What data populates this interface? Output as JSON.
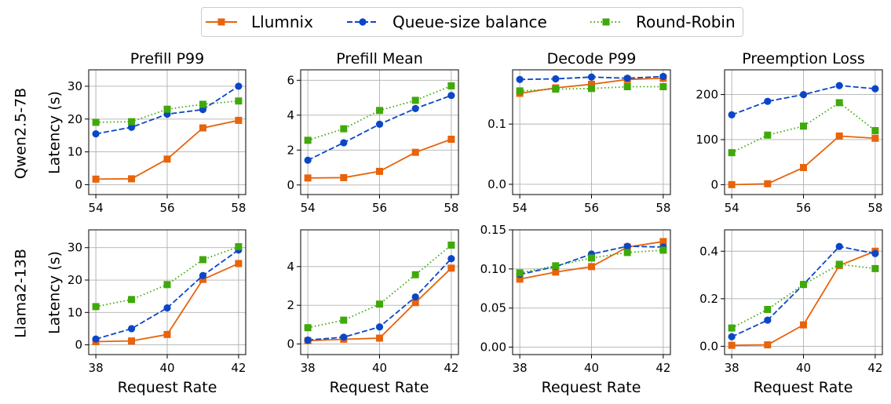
{
  "legend": {
    "entries": [
      {
        "label": "Llumnix",
        "color": "#e8630a",
        "marker": "square",
        "dash": "solid"
      },
      {
        "label": "Queue-size balance",
        "color": "#0b46c8",
        "marker": "circle",
        "dash": "dashed"
      },
      {
        "label": "Round-Robin",
        "color": "#3fa90a",
        "marker": "square",
        "dash": "dotted"
      }
    ]
  },
  "row_labels": [
    "Qwen2.5-7B",
    "Llama2-13B"
  ],
  "ylabel": "Latency (s)",
  "xlabel": "Request Rate",
  "chart_data": [
    {
      "type": "line",
      "title": "Prefill P99",
      "row": 0,
      "col": 0,
      "x": [
        54,
        55,
        56,
        57,
        58
      ],
      "xticks": [
        54,
        56,
        58
      ],
      "xlim": [
        53.8,
        58.2
      ],
      "ylim": [
        -3,
        35
      ],
      "yticks": [
        0,
        10,
        20,
        30
      ],
      "ytick_labels": [
        "0",
        "10",
        "20",
        "30"
      ],
      "series": [
        {
          "name": "Llumnix",
          "values": [
            1.7,
            1.8,
            7.8,
            17.3,
            19.6
          ]
        },
        {
          "name": "Queue-size balance",
          "values": [
            15.5,
            17.5,
            21.5,
            22.9,
            30.0
          ]
        },
        {
          "name": "Round-Robin",
          "values": [
            19.0,
            19.2,
            23.0,
            24.5,
            25.5
          ]
        }
      ]
    },
    {
      "type": "line",
      "title": "Prefill Mean",
      "row": 0,
      "col": 1,
      "x": [
        54,
        55,
        56,
        57,
        58
      ],
      "xticks": [
        54,
        56,
        58
      ],
      "xlim": [
        53.8,
        58.2
      ],
      "ylim": [
        -0.55,
        6.6
      ],
      "yticks": [
        0,
        2,
        4,
        6
      ],
      "ytick_labels": [
        "0",
        "2",
        "4",
        "6"
      ],
      "series": [
        {
          "name": "Llumnix",
          "values": [
            0.4,
            0.42,
            0.78,
            1.87,
            2.62
          ]
        },
        {
          "name": "Queue-size balance",
          "values": [
            1.42,
            2.42,
            3.48,
            4.38,
            5.13
          ]
        },
        {
          "name": "Round-Robin",
          "values": [
            2.56,
            3.22,
            4.27,
            4.85,
            5.68
          ]
        }
      ]
    },
    {
      "type": "line",
      "title": "Decode P99",
      "row": 0,
      "col": 2,
      "x": [
        54,
        55,
        56,
        57,
        58
      ],
      "xticks": [
        54,
        56,
        58
      ],
      "xlim": [
        53.8,
        58.2
      ],
      "ylim": [
        -0.017,
        0.19
      ],
      "yticks": [
        0.0,
        0.1
      ],
      "ytick_labels": [
        "0.0",
        "0.1"
      ],
      "series": [
        {
          "name": "Llumnix",
          "values": [
            0.151,
            0.16,
            0.166,
            0.174,
            0.176
          ]
        },
        {
          "name": "Queue-size balance",
          "values": [
            0.174,
            0.175,
            0.178,
            0.176,
            0.179
          ]
        },
        {
          "name": "Round-Robin",
          "values": [
            0.155,
            0.158,
            0.159,
            0.162,
            0.162
          ]
        }
      ]
    },
    {
      "type": "line",
      "title": "Preemption Loss",
      "row": 0,
      "col": 3,
      "x": [
        54,
        55,
        56,
        57,
        58
      ],
      "xticks": [
        54,
        56,
        58
      ],
      "xlim": [
        53.8,
        58.2
      ],
      "ylim": [
        -22,
        255
      ],
      "yticks": [
        0,
        100,
        200
      ],
      "ytick_labels": [
        "0",
        "100",
        "200"
      ],
      "series": [
        {
          "name": "Llumnix",
          "values": [
            0,
            2,
            38,
            108,
            103
          ]
        },
        {
          "name": "Queue-size balance",
          "values": [
            155,
            185,
            200,
            220,
            213
          ]
        },
        {
          "name": "Round-Robin",
          "values": [
            71,
            110,
            130,
            182,
            120
          ]
        }
      ]
    },
    {
      "type": "line",
      "title": "",
      "row": 1,
      "col": 0,
      "x": [
        38,
        39,
        40,
        41,
        42
      ],
      "xticks": [
        38,
        40,
        42
      ],
      "xlim": [
        37.8,
        42.2
      ],
      "ylim": [
        -3,
        35.5
      ],
      "yticks": [
        0,
        10,
        20,
        30
      ],
      "ytick_labels": [
        "0",
        "10",
        "20",
        "30"
      ],
      "series": [
        {
          "name": "Llumnix",
          "values": [
            1.0,
            1.2,
            3.2,
            20.2,
            25.1
          ]
        },
        {
          "name": "Queue-size balance",
          "values": [
            1.8,
            5.0,
            11.4,
            21.4,
            29.3
          ]
        },
        {
          "name": "Round-Robin",
          "values": [
            11.8,
            14.0,
            18.6,
            26.3,
            30.3
          ]
        }
      ]
    },
    {
      "type": "line",
      "title": "",
      "row": 1,
      "col": 1,
      "x": [
        38,
        39,
        40,
        41,
        42
      ],
      "xticks": [
        38,
        40,
        42
      ],
      "xlim": [
        37.8,
        42.2
      ],
      "ylim": [
        -0.55,
        5.9
      ],
      "yticks": [
        0,
        2,
        4
      ],
      "ytick_labels": [
        "0",
        "2",
        "4"
      ],
      "series": [
        {
          "name": "Llumnix",
          "values": [
            0.17,
            0.24,
            0.3,
            2.14,
            3.92
          ]
        },
        {
          "name": "Queue-size balance",
          "values": [
            0.2,
            0.35,
            0.88,
            2.43,
            4.41
          ]
        },
        {
          "name": "Round-Robin",
          "values": [
            0.84,
            1.23,
            2.06,
            3.58,
            5.11
          ]
        }
      ]
    },
    {
      "type": "line",
      "title": "",
      "row": 1,
      "col": 2,
      "x": [
        38,
        39,
        40,
        41,
        42
      ],
      "xticks": [
        38,
        40,
        42
      ],
      "xlim": [
        37.8,
        42.2
      ],
      "ylim": [
        -0.0095,
        0.15
      ],
      "yticks": [
        0.0,
        0.05,
        0.1,
        0.15
      ],
      "ytick_labels": [
        "0.00",
        "0.05",
        "0.10",
        "0.15"
      ],
      "series": [
        {
          "name": "Llumnix",
          "values": [
            0.087,
            0.096,
            0.103,
            0.128,
            0.135
          ]
        },
        {
          "name": "Queue-size balance",
          "values": [
            0.093,
            0.103,
            0.119,
            0.129,
            0.128
          ]
        },
        {
          "name": "Round-Robin",
          "values": [
            0.095,
            0.104,
            0.114,
            0.121,
            0.124
          ]
        }
      ]
    },
    {
      "type": "line",
      "title": "",
      "row": 1,
      "col": 3,
      "x": [
        38,
        39,
        40,
        41,
        42
      ],
      "xticks": [
        38,
        40,
        42
      ],
      "xlim": [
        37.8,
        42.2
      ],
      "ylim": [
        -0.035,
        0.49
      ],
      "yticks": [
        0.0,
        0.2,
        0.4
      ],
      "ytick_labels": [
        "0.0",
        "0.2",
        "0.4"
      ],
      "series": [
        {
          "name": "Llumnix",
          "values": [
            0.004,
            0.006,
            0.09,
            0.34,
            0.4
          ]
        },
        {
          "name": "Queue-size balance",
          "values": [
            0.04,
            0.11,
            0.26,
            0.42,
            0.39
          ]
        },
        {
          "name": "Round-Robin",
          "values": [
            0.077,
            0.155,
            0.26,
            0.345,
            0.327
          ]
        }
      ]
    }
  ]
}
